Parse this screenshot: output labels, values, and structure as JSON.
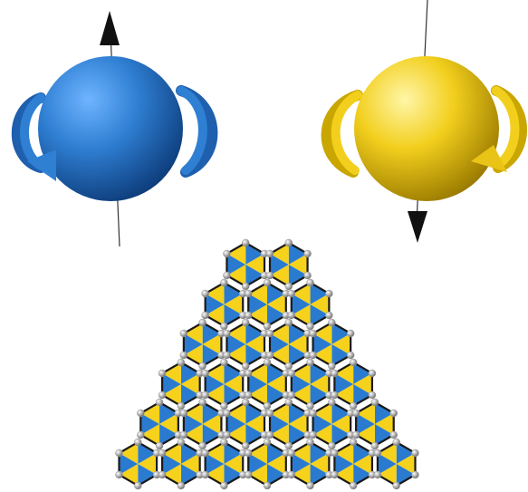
{
  "diagram": {
    "spin_up": {
      "color": "#2f7fd3",
      "arrow": "up",
      "icon": "spin-up-sphere"
    },
    "spin_down": {
      "color": "#f2cf1d",
      "arrow": "down",
      "icon": "spin-down-sphere"
    },
    "lattice": {
      "type": "triangular-honeycomb",
      "rows": 6,
      "cell_colors": [
        "#2a7bd0",
        "#f6d21c"
      ],
      "edge_color": "#1a1a1a",
      "node_color": "#9a9a9a"
    }
  }
}
